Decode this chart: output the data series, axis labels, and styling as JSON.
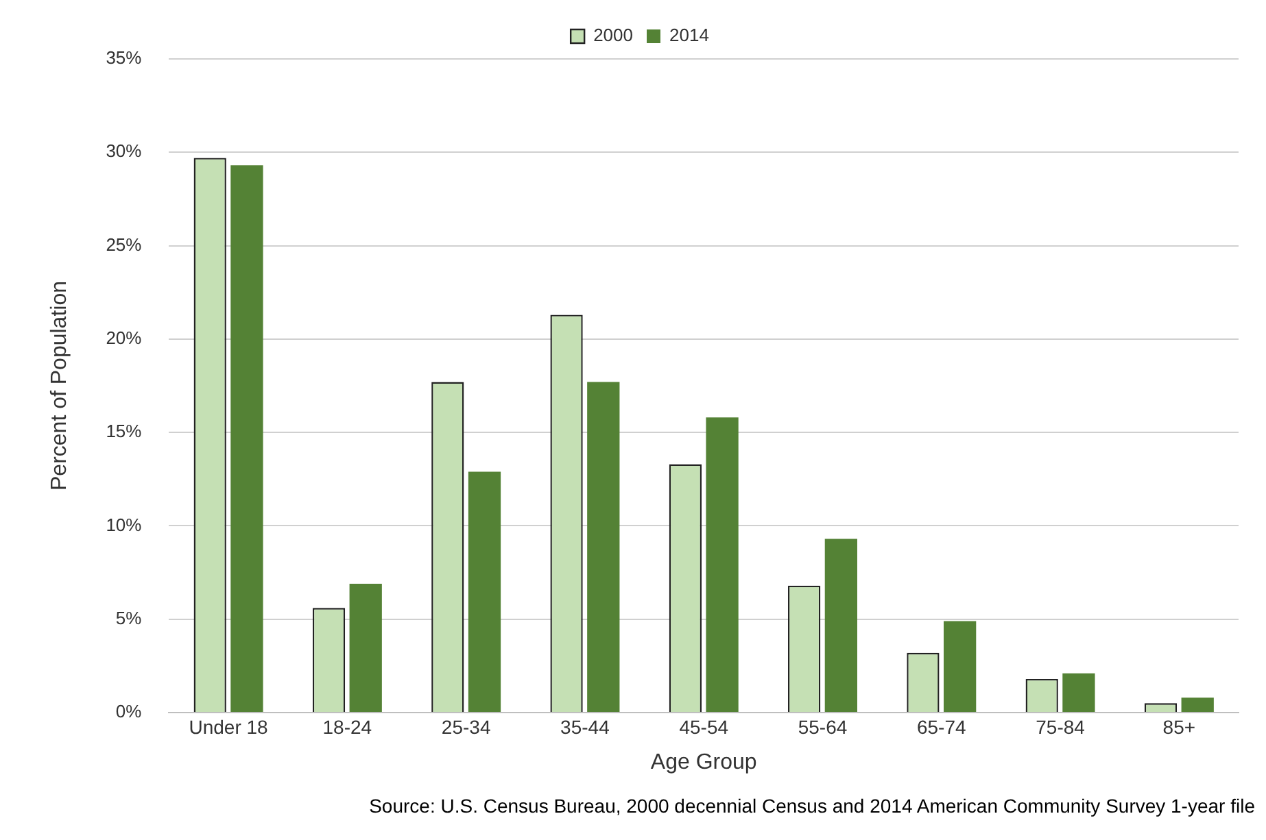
{
  "chart_data": {
    "type": "bar",
    "xlabel": "Age Group",
    "ylabel": "Percent of Population",
    "categories": [
      "Under 18",
      "18-24",
      "25-34",
      "35-44",
      "45-54",
      "55-64",
      "65-74",
      "75-84",
      "85+"
    ],
    "series": [
      {
        "name": "2000",
        "color": "#c5e0b4",
        "values": [
          29.7,
          5.6,
          17.7,
          21.3,
          13.3,
          6.8,
          3.2,
          1.8,
          0.5
        ]
      },
      {
        "name": "2014",
        "color": "#548235",
        "values": [
          29.3,
          6.9,
          12.9,
          17.7,
          15.8,
          9.3,
          4.9,
          2.1,
          0.8
        ]
      }
    ],
    "ylim": [
      0,
      35
    ],
    "yticks": [
      {
        "value": 0,
        "label": "0%"
      },
      {
        "value": 5,
        "label": "5%"
      },
      {
        "value": 10,
        "label": "10%"
      },
      {
        "value": 15,
        "label": "15%"
      },
      {
        "value": 20,
        "label": "20%"
      },
      {
        "value": 25,
        "label": "25%"
      },
      {
        "value": 30,
        "label": "30%"
      },
      {
        "value": 35,
        "label": "35%"
      }
    ],
    "grid": "y",
    "legend": "top",
    "annotations": [
      "Source: U.S. Census Bureau, 2000  decennial Census and 2014  American Community Survey 1-year file"
    ]
  }
}
